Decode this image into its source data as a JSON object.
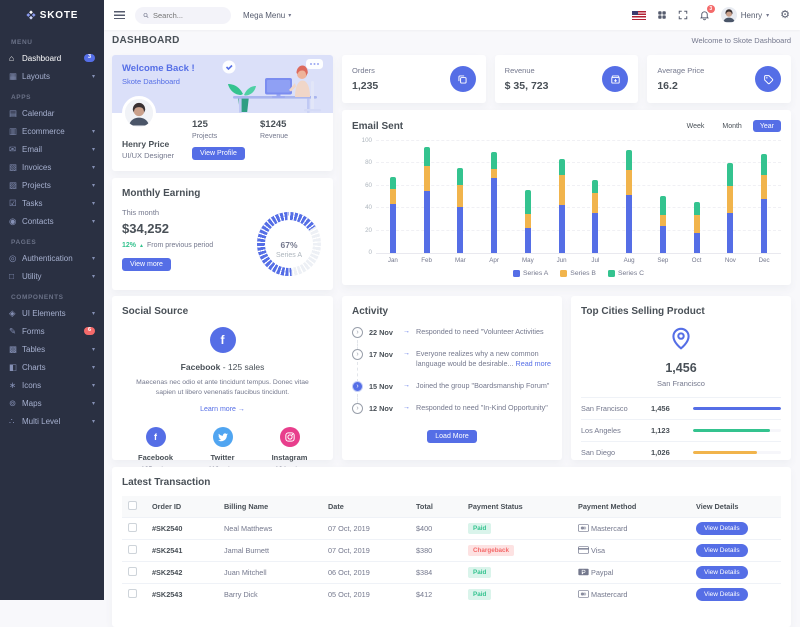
{
  "brand": {
    "name": "SKOTE"
  },
  "topbar": {
    "search": {
      "placeholder": "Search..."
    },
    "mega_menu_label": "Mega Menu",
    "notification_count": "3",
    "user_name": "Henry"
  },
  "page_header": {
    "title": "DASHBOARD",
    "welcome_text": "Welcome to Skote Dashboard"
  },
  "sidebar": {
    "sections": [
      {
        "label": "MENU",
        "items": [
          {
            "label": "Dashboard",
            "icon": "home-icon",
            "badge": "3",
            "badge_color": "primary",
            "active": true
          },
          {
            "label": "Layouts",
            "icon": "layout-icon",
            "chevron": true
          }
        ]
      },
      {
        "label": "APPS",
        "items": [
          {
            "label": "Calendar",
            "icon": "calendar-icon"
          },
          {
            "label": "Ecommerce",
            "icon": "cart-icon",
            "chevron": true
          },
          {
            "label": "Email",
            "icon": "envelope-icon",
            "chevron": true
          },
          {
            "label": "Invoices",
            "icon": "invoice-icon",
            "chevron": true
          },
          {
            "label": "Projects",
            "icon": "briefcase-icon",
            "chevron": true
          },
          {
            "label": "Tasks",
            "icon": "task-icon",
            "chevron": true
          },
          {
            "label": "Contacts",
            "icon": "contacts-icon",
            "chevron": true
          }
        ]
      },
      {
        "label": "PAGES",
        "items": [
          {
            "label": "Authentication",
            "icon": "user-circle-icon",
            "chevron": true
          },
          {
            "label": "Utility",
            "icon": "file-icon",
            "chevron": true
          }
        ]
      },
      {
        "label": "COMPONENTS",
        "items": [
          {
            "label": "UI Elements",
            "icon": "ui-elements-icon",
            "chevron": true
          },
          {
            "label": "Forms",
            "icon": "form-icon",
            "badge": "6",
            "badge_color": "danger"
          },
          {
            "label": "Tables",
            "icon": "table-icon",
            "chevron": true
          },
          {
            "label": "Charts",
            "icon": "chart-icon",
            "chevron": true
          },
          {
            "label": "Icons",
            "icon": "icons-icon",
            "chevron": true
          },
          {
            "label": "Maps",
            "icon": "map-icon",
            "chevron": true
          },
          {
            "label": "Multi Level",
            "icon": "share-icon",
            "chevron": true
          }
        ]
      }
    ]
  },
  "welcome_card": {
    "title": "Welcome Back !",
    "subtitle": "Skote Dashboard",
    "user_name": "Henry Price",
    "user_role": "UI/UX Designer",
    "stats": [
      {
        "value": "125",
        "label": "Projects"
      },
      {
        "value": "$1245",
        "label": "Revenue"
      }
    ],
    "button_label": "View Profile"
  },
  "stat_cards": [
    {
      "label": "Orders",
      "value": "1,235",
      "icon": "copy-icon"
    },
    {
      "label": "Revenue",
      "value": "$ 35, 723",
      "icon": "archive-icon"
    },
    {
      "label": "Average Price",
      "value": "16.2",
      "icon": "tag-icon"
    }
  ],
  "email_sent": {
    "title": "Email Sent",
    "range_buttons": [
      "Week",
      "Month",
      "Year"
    ],
    "active_range": "Year",
    "chart_data": {
      "type": "bar",
      "stacked": true,
      "categories": [
        "Jan",
        "Feb",
        "Mar",
        "Apr",
        "May",
        "Jun",
        "Jul",
        "Aug",
        "Sep",
        "Oct",
        "Nov",
        "Dec"
      ],
      "series": [
        {
          "name": "Series A",
          "color": "#556ee6",
          "values": [
            44,
            55,
            41,
            67,
            22,
            43,
            36,
            52,
            24,
            18,
            36,
            48
          ]
        },
        {
          "name": "Series B",
          "color": "#f1b44c",
          "values": [
            13,
            23,
            20,
            8,
            13,
            27,
            18,
            22,
            10,
            16,
            24,
            22
          ]
        },
        {
          "name": "Series C",
          "color": "#34c38f",
          "values": [
            11,
            17,
            15,
            15,
            21,
            14,
            11,
            18,
            17,
            12,
            20,
            18
          ]
        }
      ],
      "ylim": [
        0,
        100
      ],
      "ytick_step": 20,
      "grid": true,
      "legend_position": "bottom"
    }
  },
  "monthly_earning": {
    "title": "Monthly Earning",
    "period_label": "This month",
    "amount": "$34,252",
    "change_percent": "12%",
    "change_direction": "up",
    "change_note": "From previous period",
    "button_label": "View more",
    "chart_data": {
      "type": "radialbar",
      "value": 67,
      "label": "67%",
      "series_label": "Series A",
      "color": "#556ee6"
    }
  },
  "social_source": {
    "title": "Social Source",
    "highlight": {
      "network": "Facebook",
      "sales_text": "- 125 sales",
      "icon": "facebook-icon",
      "color": "#556ee6"
    },
    "description": "Maecenas nec odio et ante tincidunt tempus. Donec vitae sapien ut libero venenatis faucibus tincidunt.",
    "link_label": "Learn more",
    "networks": [
      {
        "name": "Facebook",
        "sales": "125 sales",
        "icon": "facebook-icon",
        "color": "#556ee6"
      },
      {
        "name": "Twitter",
        "sales": "112 sales",
        "icon": "twitter-icon",
        "color": "#50a5f1"
      },
      {
        "name": "Instagram",
        "sales": "104 sales",
        "icon": "instagram-icon",
        "color": "#e83e8c"
      }
    ]
  },
  "activity": {
    "title": "Activity",
    "items": [
      {
        "date": "22 Nov",
        "text": "Responded to need \"Volunteer Activities",
        "active": false
      },
      {
        "date": "17 Nov",
        "text": "Everyone realizes why a new common language would be desirable...",
        "link": "Read more",
        "active": false
      },
      {
        "date": "15 Nov",
        "text": "Joined the group \"Boardsmanship Forum\"",
        "active": true
      },
      {
        "date": "12 Nov",
        "text": "Responded to need \"In-Kind Opportunity\"",
        "active": false
      }
    ],
    "button_label": "Load More"
  },
  "top_cities": {
    "title": "Top Cities Selling Product",
    "highlight_value": "1,456",
    "highlight_city": "San Francisco",
    "chart_data": {
      "type": "table",
      "rows": [
        {
          "city": "San Francisco",
          "value": "1,456",
          "percent": 100,
          "color": "#556ee6"
        },
        {
          "city": "Los Angeles",
          "value": "1,123",
          "percent": 87,
          "color": "#34c38f"
        },
        {
          "city": "San Diego",
          "value": "1,026",
          "percent": 73,
          "color": "#f1b44c"
        }
      ]
    }
  },
  "transactions": {
    "title": "Latest Transaction",
    "columns": [
      "Order ID",
      "Billing Name",
      "Date",
      "Total",
      "Payment Status",
      "Payment Method",
      "View Details"
    ],
    "view_button_label": "View Details",
    "rows": [
      {
        "order_id": "#SK2540",
        "billing_name": "Neal Matthews",
        "date": "07 Oct, 2019",
        "total": "$400",
        "status": "Paid",
        "status_color": "success",
        "method": "Mastercard",
        "method_icon": "mastercard-icon"
      },
      {
        "order_id": "#SK2541",
        "billing_name": "Jamal Burnett",
        "date": "07 Oct, 2019",
        "total": "$380",
        "status": "Chargeback",
        "status_color": "danger",
        "method": "Visa",
        "method_icon": "visa-icon"
      },
      {
        "order_id": "#SK2542",
        "billing_name": "Juan Mitchell",
        "date": "06 Oct, 2019",
        "total": "$384",
        "status": "Paid",
        "status_color": "success",
        "method": "Paypal",
        "method_icon": "paypal-icon"
      },
      {
        "order_id": "#SK2543",
        "billing_name": "Barry Dick",
        "date": "05 Oct, 2019",
        "total": "$412",
        "status": "Paid",
        "status_color": "success",
        "method": "Mastercard",
        "method_icon": "mastercard-icon"
      }
    ]
  },
  "colors": {
    "primary": "#556ee6",
    "success": "#34c38f",
    "warning": "#f1b44c",
    "danger": "#f46a6a",
    "info": "#50a5f1",
    "pink": "#e83e8c",
    "sidebar_bg": "#2a3042",
    "body_bg": "#f8f8fb",
    "heading": "#495057",
    "muted": "#74788d"
  }
}
